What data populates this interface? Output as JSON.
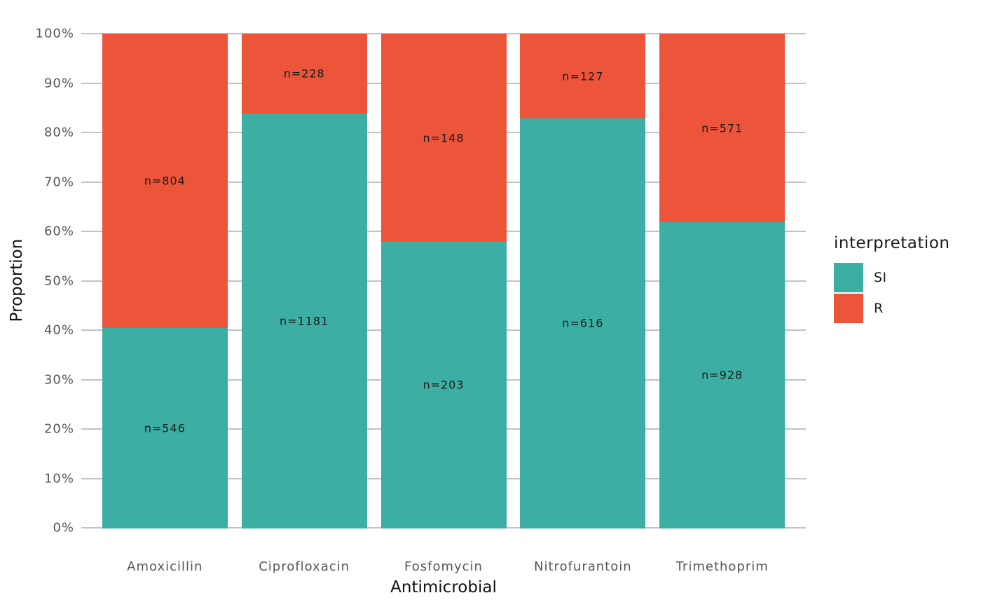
{
  "chart_data": {
    "type": "bar",
    "variant": "stacked-percent",
    "title": "",
    "xlabel": "Antimicrobial",
    "ylabel": "Proportion",
    "categories": [
      "Amoxicillin",
      "Ciprofloxacin",
      "Fosfomycin",
      "Nitrofurantoin",
      "Trimethoprim"
    ],
    "series": [
      {
        "name": "SI",
        "color": "#3CAEA3",
        "counts": [
          546,
          1181,
          203,
          616,
          928
        ],
        "labels": [
          "n=546",
          "n=1181",
          "n=203",
          "n=616",
          "n=928"
        ]
      },
      {
        "name": "R",
        "color": "#ED553B",
        "counts": [
          804,
          228,
          148,
          127,
          571
        ],
        "labels": [
          "n=804",
          "n=228",
          "n=148",
          "n=127",
          "n=571"
        ]
      }
    ],
    "si_proportion_pct": [
      40.4,
      83.8,
      57.8,
      82.9,
      61.9
    ],
    "y_axis": {
      "ticks_pct": [
        0,
        10,
        20,
        30,
        40,
        50,
        60,
        70,
        80,
        90,
        100
      ],
      "tick_label_suffix": "%",
      "range_pct": [
        0,
        100
      ],
      "grid": "major-horizontal-only"
    },
    "legend": {
      "title": "interpretation",
      "position": "right",
      "items": [
        {
          "label": "SI",
          "color": "#3CAEA3"
        },
        {
          "label": "R",
          "color": "#ED553B"
        }
      ]
    },
    "colors": {
      "si": "#3CAEA3",
      "r": "#ED553B",
      "gridline": "#C3C3C3",
      "axis_tick_text": "#555555",
      "axis_title_text": "#111111",
      "segment_label_text": "#1A1A1A",
      "background": "#FFFFFF"
    }
  }
}
